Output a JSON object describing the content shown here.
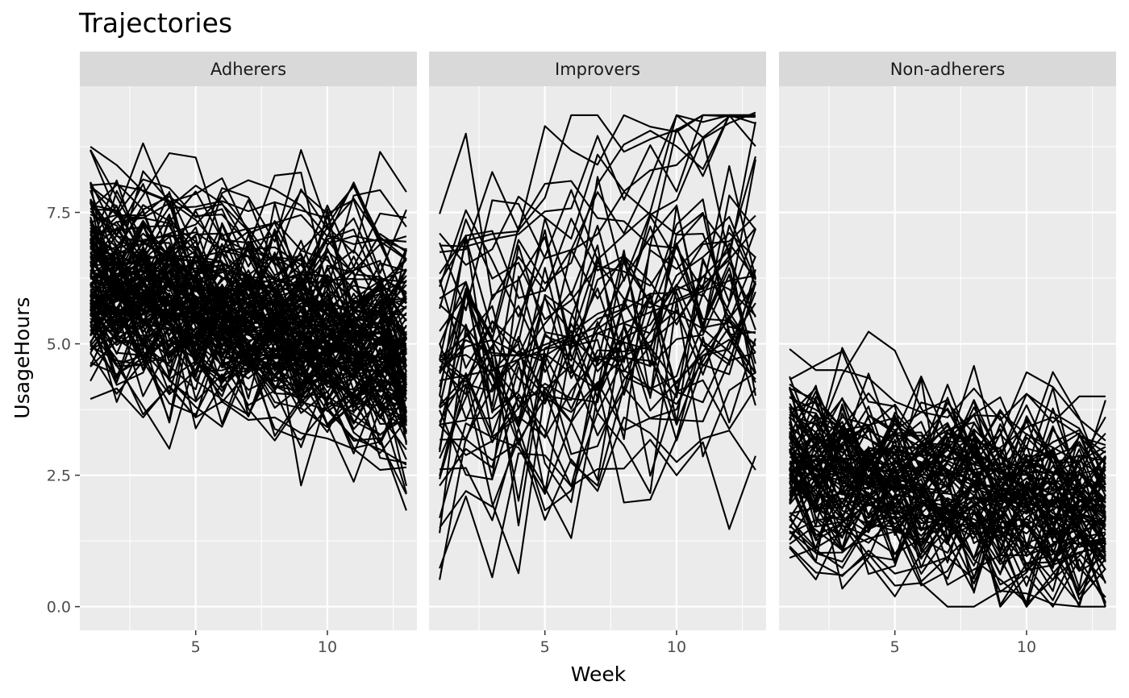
{
  "chart_data": {
    "type": "line",
    "title": "Trajectories",
    "xlabel": "Week",
    "ylabel": "UsageHours",
    "xlim": [
      0.6,
      13.4
    ],
    "ylim": [
      -0.45,
      9.9
    ],
    "x_major_ticks": [
      5,
      10
    ],
    "x_minor_ticks": [
      2.5,
      7.5,
      12.5
    ],
    "y_major_ticks": [
      0.0,
      2.5,
      5.0,
      7.5
    ],
    "y_tick_labels": [
      "0.0",
      "2.5",
      "5.0",
      "7.5"
    ],
    "y_minor_ticks": [
      1.25,
      3.75,
      6.25,
      8.75
    ],
    "grid": true,
    "line_color": "#000000",
    "panel_background": "#ebebeb",
    "strip_background": "#d9d9d9",
    "x": [
      1,
      2,
      3,
      4,
      5,
      6,
      7,
      8,
      9,
      10,
      11,
      12,
      13
    ],
    "facets": [
      {
        "label": "Adherers",
        "n_lines": 150,
        "sample_lines": [
          [
            8.75,
            8.4,
            7.9,
            7.7,
            7.85,
            8.15,
            7.1,
            7.3,
            7.45,
            6.9,
            7.05,
            6.95,
            6.6
          ],
          [
            6.3,
            6.0,
            5.8,
            5.6,
            5.4,
            5.3,
            5.2,
            5.1,
            5.0,
            4.9,
            4.85,
            4.75,
            4.7
          ],
          [
            3.95,
            4.15,
            3.6,
            4.2,
            3.6,
            3.9,
            3.55,
            3.6,
            3.3,
            3.2,
            3.0,
            2.6,
            2.65
          ]
        ]
      },
      {
        "label": "Improvers",
        "n_lines": 50,
        "sample_lines": [
          [
            7.1,
            6.5,
            6.8,
            7.8,
            7.4,
            7.0,
            8.6,
            7.9,
            8.3,
            8.4,
            8.9,
            9.2,
            9.4
          ],
          [
            4.3,
            4.4,
            4.5,
            4.7,
            4.9,
            5.0,
            5.2,
            5.4,
            5.6,
            5.8,
            6.0,
            6.2,
            6.3
          ],
          [
            1.5,
            2.2,
            1.9,
            3.2,
            1.65,
            2.8,
            2.2,
            3.6,
            3.3,
            2.75,
            3.2,
            3.35,
            2.6
          ]
        ]
      },
      {
        "label": "Non-adherers",
        "n_lines": 100,
        "sample_lines": [
          [
            4.9,
            4.5,
            4.5,
            4.35,
            3.9,
            3.7,
            3.6,
            4.15,
            3.55,
            4.05,
            3.5,
            4.0,
            4.0
          ],
          [
            2.6,
            2.5,
            2.4,
            2.35,
            2.3,
            2.2,
            2.15,
            2.05,
            2.0,
            1.95,
            1.9,
            1.85,
            1.8
          ],
          [
            1.15,
            0.65,
            0.6,
            1.0,
            0.4,
            0.45,
            0.0,
            0.0,
            0.3,
            0.25,
            0.05,
            0.0,
            0.0
          ]
        ]
      }
    ]
  }
}
